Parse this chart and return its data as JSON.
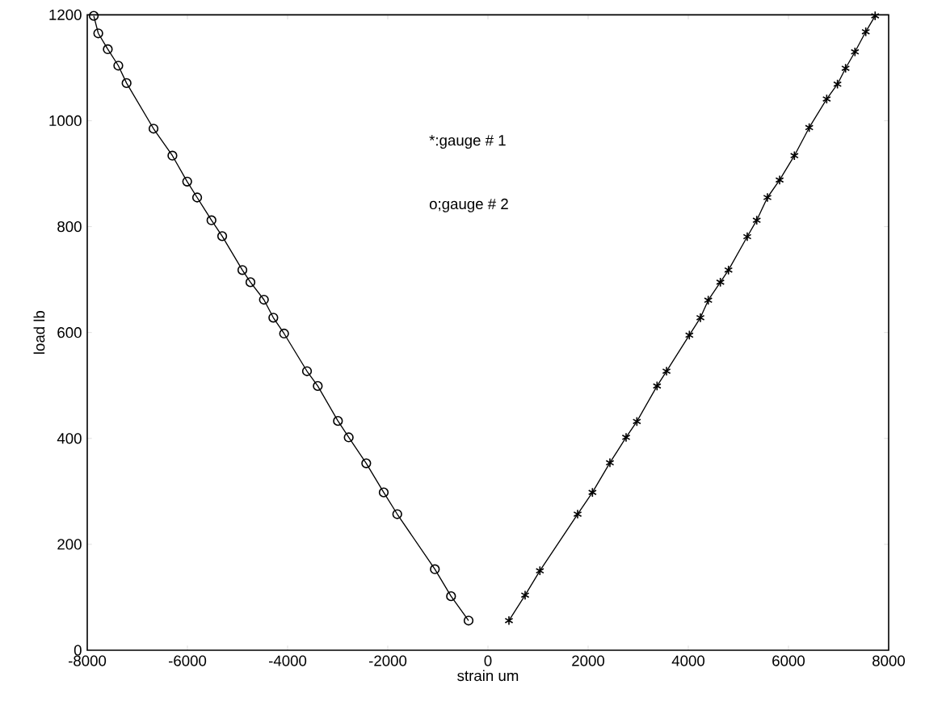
{
  "chart_data": {
    "type": "line",
    "xlabel": "strain um",
    "ylabel": "load lb",
    "xlim": [
      -8000,
      8000
    ],
    "ylim": [
      0,
      1200
    ],
    "xticks": [
      -8000,
      -6000,
      -4000,
      -2000,
      0,
      2000,
      4000,
      6000,
      8000
    ],
    "yticks": [
      0,
      200,
      400,
      600,
      800,
      1000,
      1200
    ],
    "grid": false,
    "line_style": "solid",
    "annotations": [
      "*:gauge # 1",
      "o;gauge # 2"
    ],
    "series": [
      {
        "color": "#000000",
        "marker": "cross",
        "x": [
          419,
          742,
          1037,
          1790,
          2086,
          2435,
          2758,
          2973,
          3376,
          3565,
          4021,
          4242,
          4398,
          4640,
          4802,
          5177,
          5366,
          5580,
          5823,
          6118,
          6414,
          6763,
          6978,
          7140,
          7327,
          7543,
          7730
        ],
        "values": [
          56,
          104,
          150,
          257,
          298,
          354,
          402,
          432,
          499,
          527,
          595,
          628,
          661,
          695,
          718,
          781,
          812,
          855,
          888,
          934,
          987,
          1041,
          1069,
          1099,
          1130,
          1168,
          1198
        ]
      },
      {
        "color": "#000000",
        "marker": "circle",
        "x": [
          -7870,
          -7780,
          -7590,
          -7380,
          -7215,
          -6677,
          -6300,
          -6005,
          -5806,
          -5520,
          -5306,
          -4903,
          -4742,
          -4473,
          -4285,
          -4070,
          -3613,
          -3398,
          -2995,
          -2780,
          -2430,
          -2081,
          -1811,
          -1060,
          -737,
          -387
        ],
        "values": [
          1198,
          1165,
          1135,
          1104,
          1071,
          985,
          934,
          885,
          855,
          812,
          782,
          718,
          695,
          662,
          628,
          598,
          527,
          499,
          433,
          402,
          353,
          298,
          257,
          153,
          102,
          56
        ]
      }
    ]
  }
}
